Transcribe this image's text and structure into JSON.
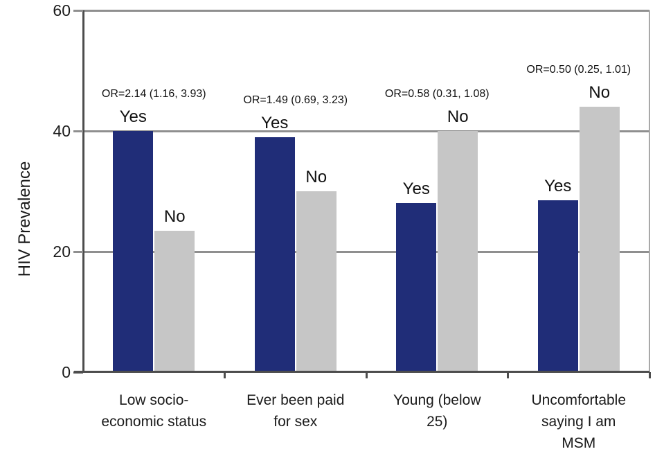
{
  "chart_data": {
    "type": "bar",
    "title": "",
    "ylabel": "HIV Prevalence",
    "xlabel": "",
    "ylim": [
      0,
      60
    ],
    "yticks": [
      0,
      20,
      40,
      60
    ],
    "grid": "horizontal gridlines at 20, 40, 60",
    "legend_position": "none (each bar labeled directly)",
    "categories": [
      "Low socio-\neconomic status",
      "Ever been paid\nfor sex",
      "Young (below\n25)",
      "Uncomfortable\nsaying I am\nMSM"
    ],
    "series": [
      {
        "name": "Yes",
        "color": "#202d78",
        "values": [
          40,
          39,
          28,
          28.5
        ]
      },
      {
        "name": "No",
        "color": "#c6c6c6",
        "values": [
          23.5,
          30,
          40,
          44
        ]
      }
    ],
    "annotations": [
      "OR=2.14 (1.16, 3.93)",
      "OR=1.49 (0.69, 3.23)",
      "OR=0.58 (0.31, 1.08)",
      "OR=0.50 (0.25, 1.01)"
    ],
    "axis_colors": {
      "axis": "#4d4d4d",
      "grid": "#8f8f8f",
      "right_border": "#a8a8a8"
    }
  }
}
